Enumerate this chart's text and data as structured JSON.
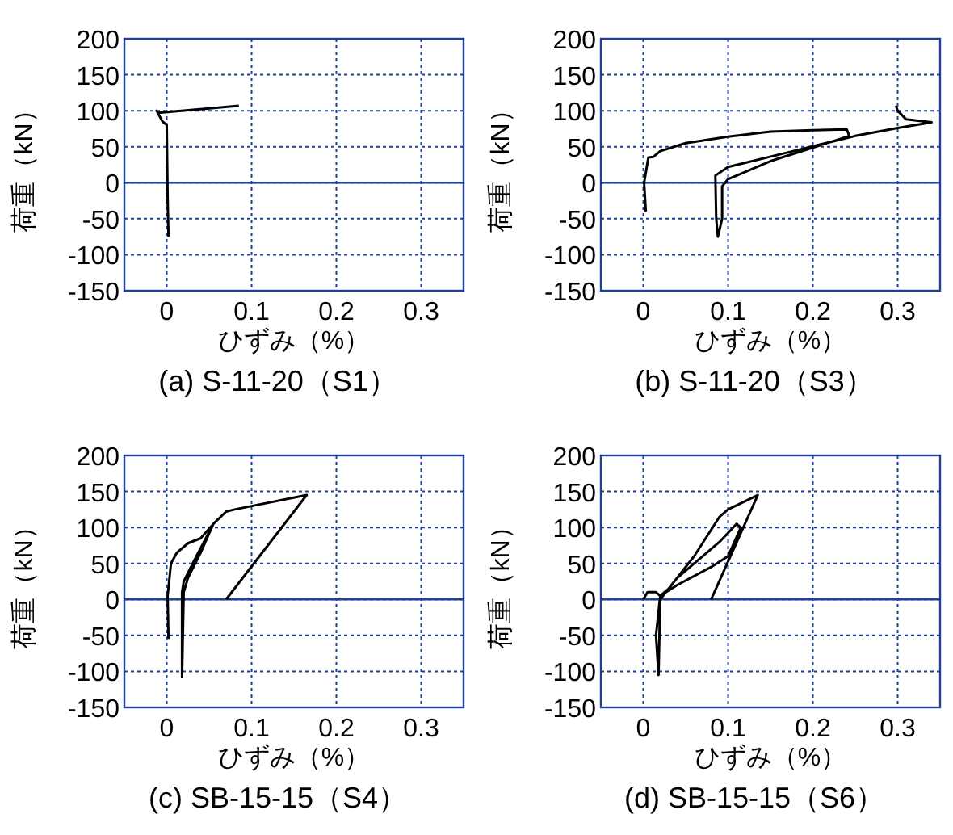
{
  "chart_data": [
    {
      "type": "line",
      "title": "(a) S-11-20（S1）",
      "xlabel": "ひずみ（%）",
      "ylabel": "荷重（kN）",
      "xlim": [
        -0.05,
        0.35
      ],
      "ylim": [
        -150,
        200
      ],
      "xticks": [
        0,
        0.1,
        0.2,
        0.3
      ],
      "yticks": [
        -150,
        -100,
        -50,
        0,
        50,
        100,
        150,
        200
      ],
      "grid": true,
      "ref_lines": [
        {
          "axis": "y",
          "value": 0,
          "color": "#1f3f99"
        }
      ],
      "series": [
        {
          "color": "#000000",
          "x": [
            0.002,
            0.001,
            0,
            -0.005,
            -0.012,
            -0.01,
            0.085
          ],
          "values": [
            -75,
            -20,
            80,
            85,
            100,
            97,
            107
          ]
        }
      ]
    },
    {
      "type": "line",
      "title": "(b) S-11-20（S3）",
      "xlabel": "ひずみ（%）",
      "ylabel": "荷重（kN）",
      "xlim": [
        -0.05,
        0.35
      ],
      "ylim": [
        -150,
        200
      ],
      "xticks": [
        0,
        0.1,
        0.2,
        0.3
      ],
      "yticks": [
        -150,
        -100,
        -50,
        0,
        50,
        100,
        150,
        200
      ],
      "grid": true,
      "ref_lines": [
        {
          "axis": "y",
          "value": 0,
          "color": "#1f3f99"
        }
      ],
      "series": [
        {
          "color": "#000000",
          "x": [
            0.003,
            0.001,
            0.006,
            0.012,
            0.02,
            0.05,
            0.1,
            0.15,
            0.2,
            0.24,
            0.243,
            0.15,
            0.1,
            0.093,
            0.093,
            0.088,
            0.086,
            0.085,
            0.1,
            0.17,
            0.25,
            0.3,
            0.34,
            0.31,
            0.3,
            0.298
          ],
          "values": [
            -40,
            0,
            35,
            36,
            44,
            55,
            64,
            71,
            73,
            74,
            65,
            30,
            5,
            -5,
            -50,
            -75,
            -50,
            10,
            22,
            42,
            65,
            76,
            84,
            88,
            100,
            107
          ]
        }
      ]
    },
    {
      "type": "line",
      "title": "(c) SB-15-15（S4）",
      "xlabel": "ひずみ（%）",
      "ylabel": "荷重（kN）",
      "xlim": [
        -0.05,
        0.35
      ],
      "ylim": [
        -150,
        200
      ],
      "xticks": [
        0,
        0.1,
        0.2,
        0.3
      ],
      "yticks": [
        -150,
        -100,
        -50,
        0,
        50,
        100,
        150,
        200
      ],
      "grid": true,
      "ref_lines": [
        {
          "axis": "y",
          "value": 0,
          "color": "#1f3f99"
        }
      ],
      "series": [
        {
          "color": "#000000",
          "x": [
            0.002,
            0.001,
            0.005,
            0.012,
            0.025,
            0.04,
            0.055,
            0.035,
            0.02,
            0.018,
            0.018,
            0.02,
            0.025,
            0.04,
            0.055,
            0.07,
            0.08,
            0.165,
            0.07
          ],
          "values": [
            -55,
            5,
            50,
            65,
            78,
            85,
            105,
            60,
            25,
            10,
            -108,
            10,
            30,
            65,
            105,
            122,
            125,
            145,
            0
          ]
        }
      ]
    },
    {
      "type": "line",
      "title": "(d) SB-15-15（S6）",
      "xlabel": "ひずみ（%）",
      "ylabel": "荷重（kN）",
      "xlim": [
        -0.05,
        0.35
      ],
      "ylim": [
        -150,
        200
      ],
      "xticks": [
        0,
        0.1,
        0.2,
        0.3
      ],
      "yticks": [
        -150,
        -100,
        -50,
        0,
        50,
        100,
        150,
        200
      ],
      "grid": true,
      "ref_lines": [
        {
          "axis": "y",
          "value": 0,
          "color": "#1f3f99"
        }
      ],
      "series": [
        {
          "color": "#000000",
          "x": [
            0,
            0.005,
            0.015,
            0.02,
            0.015,
            0.018,
            0.02,
            0.04,
            0.07,
            0.09,
            0.11,
            0.115,
            0.1,
            0.08,
            0.04,
            0.02,
            0.03,
            0.06,
            0.09,
            0.1,
            0.135,
            0.08
          ],
          "values": [
            0,
            10,
            10,
            5,
            -50,
            -105,
            0,
            30,
            60,
            80,
            105,
            100,
            60,
            45,
            20,
            5,
            15,
            60,
            115,
            125,
            145,
            0
          ]
        }
      ]
    }
  ]
}
